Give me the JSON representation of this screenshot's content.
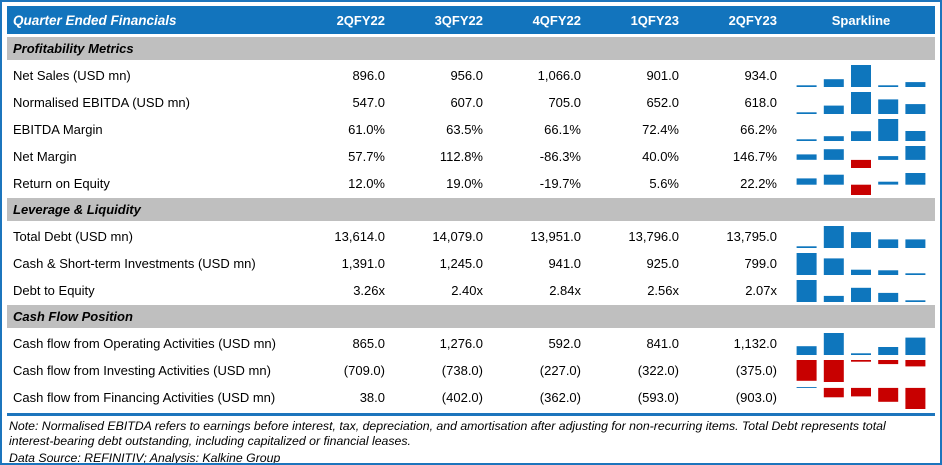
{
  "chart_data": {
    "type": "table",
    "title": "Quarter Ended Financials",
    "columns": [
      "2QFY22",
      "3QFY22",
      "4QFY22",
      "1QFY23",
      "2QFY23"
    ],
    "sparkline_column": "Sparkline",
    "sparkline_type": "column",
    "legend_position": "none",
    "sections": [
      {
        "name": "Profitability Metrics",
        "rows": [
          {
            "label": "Net Sales (USD mn)",
            "display": [
              "896.0",
              "956.0",
              "1,066.0",
              "901.0",
              "934.0"
            ],
            "values": [
              896.0,
              956.0,
              1066.0,
              901.0,
              934.0
            ]
          },
          {
            "label": "Normalised EBITDA (USD mn)",
            "display": [
              "547.0",
              "607.0",
              "705.0",
              "652.0",
              "618.0"
            ],
            "values": [
              547.0,
              607.0,
              705.0,
              652.0,
              618.0
            ]
          },
          {
            "label": "EBITDA Margin",
            "display": [
              "61.0%",
              "63.5%",
              "66.1%",
              "72.4%",
              "66.2%"
            ],
            "values": [
              61.0,
              63.5,
              66.1,
              72.4,
              66.2
            ]
          },
          {
            "label": "Net Margin",
            "display": [
              "57.7%",
              "112.8%",
              "-86.3%",
              "40.0%",
              "146.7%"
            ],
            "values": [
              57.7,
              112.8,
              -86.3,
              40.0,
              146.7
            ]
          },
          {
            "label": "Return on Equity",
            "display": [
              "12.0%",
              "19.0%",
              "-19.7%",
              "5.6%",
              "22.2%"
            ],
            "values": [
              12.0,
              19.0,
              -19.7,
              5.6,
              22.2
            ]
          }
        ]
      },
      {
        "name": "Leverage & Liquidity",
        "rows": [
          {
            "label": "Total Debt (USD mn)",
            "display": [
              "13,614.0",
              "14,079.0",
              "13,951.0",
              "13,796.0",
              "13,795.0"
            ],
            "values": [
              13614.0,
              14079.0,
              13951.0,
              13796.0,
              13795.0
            ]
          },
          {
            "label": "Cash & Short-term Investments (USD mn)",
            "display": [
              "1,391.0",
              "1,245.0",
              "941.0",
              "925.0",
              "799.0"
            ],
            "values": [
              1391.0,
              1245.0,
              941.0,
              925.0,
              799.0
            ]
          },
          {
            "label": "Debt to Equity",
            "display": [
              "3.26x",
              "2.40x",
              "2.84x",
              "2.56x",
              "2.07x"
            ],
            "values": [
              3.26,
              2.4,
              2.84,
              2.56,
              2.07
            ]
          }
        ]
      },
      {
        "name": "Cash Flow Position",
        "rows": [
          {
            "label": "Cash flow from Operating Activities (USD mn)",
            "display": [
              "865.0",
              "1,276.0",
              "592.0",
              "841.0",
              "1,132.0"
            ],
            "values": [
              865.0,
              1276.0,
              592.0,
              841.0,
              1132.0
            ]
          },
          {
            "label": "Cash flow from Investing Activities (USD mn)",
            "display": [
              "(709.0)",
              "(738.0)",
              "(227.0)",
              "(322.0)",
              "(375.0)"
            ],
            "values": [
              -709.0,
              -738.0,
              -227.0,
              -322.0,
              -375.0
            ]
          },
          {
            "label": "Cash flow from Financing Activities (USD mn)",
            "display": [
              "38.0",
              "(402.0)",
              "(362.0)",
              "(593.0)",
              "(903.0)"
            ],
            "values": [
              38.0,
              -402.0,
              -362.0,
              -593.0,
              -903.0
            ]
          }
        ]
      }
    ]
  },
  "footer": {
    "note": "Note: Normalised EBITDA refers to earnings before interest, tax, depreciation, and amortisation after adjusting for non-recurring items. Total Debt represents total interest-bearing debt outstanding, including capitalized or financial leases.",
    "source": "Data Source: REFINITIV; Analysis: Kalkine Group"
  },
  "colors": {
    "header_bg": "#1274BD",
    "section_bg": "#BFBFBF",
    "border_blue": "#1C75BD",
    "sparkline_positive": "#0E76BD",
    "sparkline_negative": "#C80000"
  }
}
